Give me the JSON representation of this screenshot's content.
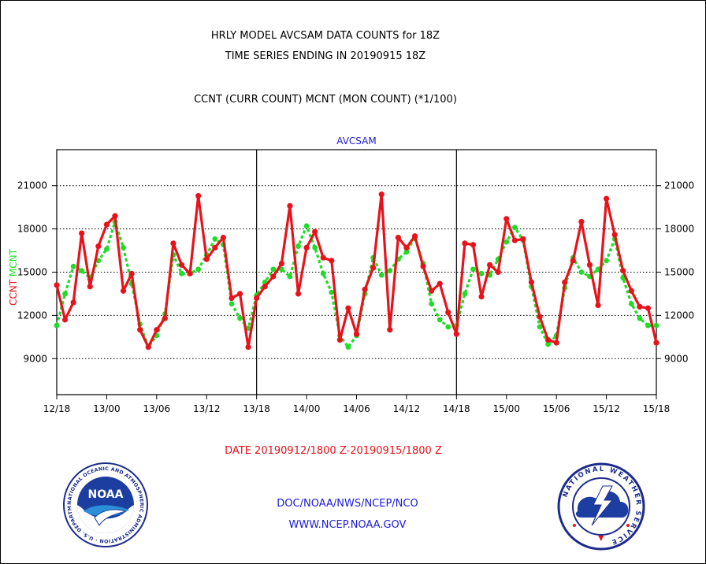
{
  "title_line1": "HRLY MODEL AVCSAM DATA COUNTS for 18Z",
  "title_line2": "TIME SERIES ENDING IN 20190915 18Z",
  "subtitle": "CCNT (CURR COUNT) MCNT (MON COUNT) (*1/100)",
  "date_range": "DATE 20190912/1800 Z-20190915/1800 Z",
  "footer_org": "DOC/NOAA/NWS/NCEP/NCO",
  "footer_url": "WWW.NCEP.NOAA.GOV",
  "logos": {
    "noaa_ring": "NATIONAL OCEANIC AND ATMOSPHERIC ADMINISTRATION · U.S. DEPARTMENT OF COMMERCE ·",
    "noaa_center": "NOAA",
    "nws_ring": "NATIONAL WEATHER SERVICE"
  },
  "colors": {
    "ccnt": "#e8121b",
    "mcnt": "#1fdc28",
    "panel_title": "#1a1ad8",
    "date": "#e8121b",
    "footer": "#1a1ad8"
  },
  "chart_data": {
    "type": "line",
    "title": "AVCSAM",
    "ylabel_parts": [
      "CCNT",
      "MCNT"
    ],
    "ylim": [
      6500,
      23500
    ],
    "yticks": [
      9000,
      12000,
      15000,
      18000,
      21000
    ],
    "xlim": [
      0,
      72
    ],
    "x_tick_labels": [
      "12/18",
      "13/00",
      "13/06",
      "13/12",
      "13/18",
      "14/00",
      "14/06",
      "14/12",
      "14/18",
      "15/00",
      "15/06",
      "15/12",
      "15/18"
    ],
    "x_day_boundaries": [
      24,
      48
    ],
    "grid": "horizontal dotted",
    "series": [
      {
        "name": "CCNT",
        "values": [
          14100,
          11700,
          12900,
          17700,
          14000,
          16800,
          18300,
          18900,
          13700,
          14900,
          11000,
          9800,
          11000,
          11800,
          17000,
          15500,
          14900,
          20300,
          15900,
          16700,
          17400,
          13200,
          13500,
          9800,
          13200,
          14000,
          14700,
          15600,
          19600,
          13500,
          16700,
          17800,
          16000,
          15800,
          10300,
          12500,
          10700,
          13800,
          15300,
          20400,
          11000,
          17400,
          16700,
          17500,
          15400,
          13700,
          14200,
          12200,
          10700,
          17000,
          16900,
          13300,
          15500,
          15000,
          18700,
          17200,
          17300,
          14300,
          11900,
          10300,
          10100,
          14300,
          15800,
          18500,
          15500,
          12700,
          20100,
          17600,
          15100,
          13700,
          12600,
          12500,
          10100
        ]
      },
      {
        "name": "MCNT",
        "values": [
          11300,
          13500,
          15400,
          15100,
          14600,
          15800,
          16600,
          18500,
          16700,
          14200,
          11400,
          9800,
          10600,
          12100,
          16200,
          14900,
          14900,
          15200,
          16200,
          17300,
          16900,
          12800,
          11800,
          11100,
          13400,
          14300,
          15200,
          15200,
          14700,
          16800,
          18200,
          16700,
          14900,
          13600,
          10600,
          9800,
          10600,
          13500,
          16000,
          14800,
          15100,
          15900,
          16400,
          17400,
          15600,
          12800,
          11700,
          11200,
          11300,
          13500,
          15200,
          14900,
          14800,
          15900,
          17100,
          18100,
          17200,
          14000,
          11200,
          10000,
          10600,
          13900,
          16000,
          15000,
          14700,
          15200,
          15800,
          17300,
          14600,
          12800,
          11800,
          11300,
          11300
        ]
      }
    ]
  }
}
